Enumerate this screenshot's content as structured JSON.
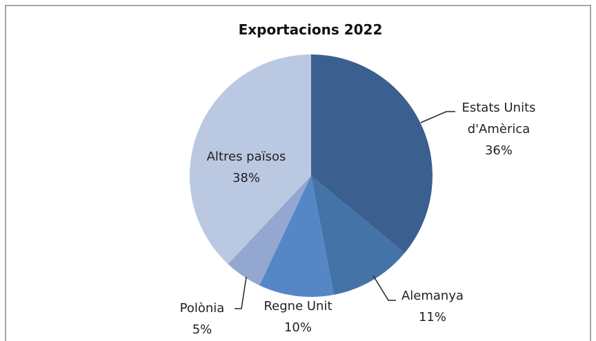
{
  "chart_data": {
    "type": "pie",
    "title": "Exportacions 2022",
    "categories": [
      "Estats Units d'Amèrica",
      "Alemanya",
      "Regne Unit",
      "Polònia",
      "Altres països"
    ],
    "values": [
      36,
      11,
      10,
      5,
      38
    ],
    "value_labels": [
      "36%",
      "11%",
      "10%",
      "5%",
      "38%"
    ],
    "colors": [
      "#3b5f8e",
      "#4473a8",
      "#5587c6",
      "#93a7d0",
      "#bac8e2"
    ]
  }
}
